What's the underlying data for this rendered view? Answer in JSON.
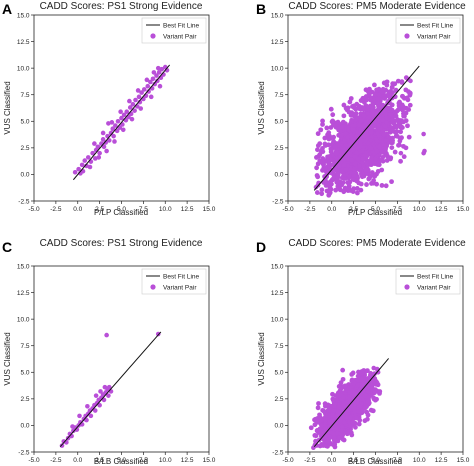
{
  "figure": {
    "panels": [
      {
        "label": "A",
        "title": "CADD Scores: PS1 Strong Evidence",
        "xlabel": "P/LP Classified",
        "ylabel": "VUS Classified"
      },
      {
        "label": "B",
        "title": "CADD Scores: PM5 Moderate Evidence",
        "xlabel": "P/LP Classified",
        "ylabel": "VUS Classified"
      },
      {
        "label": "C",
        "title": "CADD Scores: PS1 Strong Evidence",
        "xlabel": "B/LB Classified",
        "ylabel": "VUS Classified"
      },
      {
        "label": "D",
        "title": "CADD Scores: PM5 Moderate Evidence",
        "xlabel": "B/LB Classified",
        "ylabel": "VUS Classified"
      }
    ],
    "legend": {
      "line": "Best Fit Line",
      "points": "Variant Pair"
    },
    "colors": {
      "points": "#b94fd8",
      "line": "#111111"
    }
  },
  "chart_data": [
    {
      "type": "scatter",
      "title": "CADD Scores: PS1 Strong Evidence",
      "xlabel": "P/LP Classified",
      "ylabel": "VUS Classified",
      "xlim": [
        -5,
        15
      ],
      "ylim": [
        -2.5,
        15
      ],
      "xticks": [
        -5.0,
        -2.5,
        0.0,
        2.5,
        5.0,
        7.5,
        10.0,
        12.5,
        15.0
      ],
      "yticks": [
        -2.5,
        0.0,
        2.5,
        5.0,
        7.5,
        10.0,
        12.5,
        15.0
      ],
      "legend_position": "top-right",
      "fit_line": {
        "x": [
          -0.5,
          10.5
        ],
        "y": [
          -0.5,
          10.3
        ]
      },
      "series": [
        {
          "name": "Variant Pair",
          "points": [
            [
              -0.3,
              0.2
            ],
            [
              0.1,
              0.5
            ],
            [
              0.3,
              0.1
            ],
            [
              0.5,
              0.9
            ],
            [
              0.8,
              1.3
            ],
            [
              1.0,
              0.8
            ],
            [
              1.2,
              1.6
            ],
            [
              1.5,
              1.2
            ],
            [
              1.7,
              2.0
            ],
            [
              2.0,
              1.5
            ],
            [
              2.1,
              2.3
            ],
            [
              2.3,
              2.6
            ],
            [
              2.5,
              2.0
            ],
            [
              2.7,
              2.9
            ],
            [
              2.9,
              3.3
            ],
            [
              3.0,
              2.6
            ],
            [
              3.2,
              3.0
            ],
            [
              3.4,
              3.6
            ],
            [
              3.5,
              4.8
            ],
            [
              3.6,
              3.2
            ],
            [
              3.8,
              3.9
            ],
            [
              4.0,
              4.3
            ],
            [
              4.1,
              3.6
            ],
            [
              4.3,
              4.6
            ],
            [
              4.5,
              4.1
            ],
            [
              4.6,
              5.0
            ],
            [
              4.8,
              4.4
            ],
            [
              5.0,
              5.3
            ],
            [
              5.1,
              4.7
            ],
            [
              5.3,
              5.6
            ],
            [
              5.5,
              5.1
            ],
            [
              5.6,
              5.9
            ],
            [
              5.8,
              5.4
            ],
            [
              6.0,
              6.3
            ],
            [
              6.1,
              5.7
            ],
            [
              6.3,
              6.6
            ],
            [
              6.5,
              6.0
            ],
            [
              6.6,
              7.0
            ],
            [
              6.8,
              6.4
            ],
            [
              7.0,
              7.3
            ],
            [
              7.1,
              6.8
            ],
            [
              7.3,
              7.7
            ],
            [
              7.5,
              7.1
            ],
            [
              7.6,
              8.0
            ],
            [
              7.8,
              7.4
            ],
            [
              8.0,
              8.3
            ],
            [
              8.1,
              7.8
            ],
            [
              8.3,
              8.7
            ],
            [
              8.5,
              8.1
            ],
            [
              8.6,
              9.0
            ],
            [
              8.8,
              8.5
            ],
            [
              9.0,
              9.3
            ],
            [
              9.1,
              8.8
            ],
            [
              9.3,
              9.6
            ],
            [
              9.5,
              9.1
            ],
            [
              9.6,
              9.9
            ],
            [
              9.8,
              9.4
            ],
            [
              10.0,
              10.1
            ],
            [
              10.2,
              9.8
            ],
            [
              9.2,
              10.0
            ],
            [
              8.7,
              9.6
            ],
            [
              7.9,
              8.9
            ],
            [
              6.9,
              7.9
            ],
            [
              5.9,
              6.9
            ],
            [
              4.9,
              5.9
            ],
            [
              3.9,
              4.9
            ],
            [
              2.9,
              3.9
            ],
            [
              1.9,
              2.9
            ],
            [
              7.2,
              6.2
            ],
            [
              8.4,
              7.3
            ],
            [
              5.2,
              4.2
            ],
            [
              4.2,
              3.1
            ],
            [
              3.3,
              2.2
            ],
            [
              6.2,
              5.2
            ],
            [
              9.4,
              8.3
            ],
            [
              2.4,
              1.6
            ],
            [
              1.4,
              0.7
            ],
            [
              0.6,
              0.3
            ]
          ]
        }
      ]
    },
    {
      "type": "scatter",
      "title": "CADD Scores: PM5 Moderate Evidence",
      "xlabel": "P/LP Classified",
      "ylabel": "VUS Classified",
      "xlim": [
        -5,
        15
      ],
      "ylim": [
        -2.5,
        15
      ],
      "xticks": [
        -5.0,
        -2.5,
        0.0,
        2.5,
        5.0,
        7.5,
        10.0,
        12.5,
        15.0
      ],
      "yticks": [
        -2.5,
        0.0,
        2.5,
        5.0,
        7.5,
        10.0,
        12.5,
        15.0
      ],
      "legend_position": "top-right",
      "fit_line": {
        "x": [
          -2.0,
          10.0
        ],
        "y": [
          -1.5,
          10.2
        ]
      },
      "cloud": {
        "center": [
          3.5,
          3.2
        ],
        "spread": [
          2.4,
          2.3
        ],
        "corr": 0.55,
        "count": 1500,
        "x_range": [
          -2.0,
          9.0
        ],
        "y_range": [
          -2.0,
          9.5
        ]
      },
      "series": [
        {
          "name": "Variant Pair",
          "points": [
            [
              10.5,
              3.8
            ],
            [
              10.6,
              2.2
            ],
            [
              10.5,
              2.0
            ],
            [
              8.6,
              7.2
            ],
            [
              8.8,
              6.1
            ],
            [
              9.0,
              8.8
            ],
            [
              -1.8,
              -1.2
            ],
            [
              -1.5,
              -0.8
            ],
            [
              8.2,
              5.5
            ],
            [
              7.9,
              2.0
            ]
          ]
        }
      ]
    },
    {
      "type": "scatter",
      "title": "CADD Scores: PS1 Strong Evidence",
      "xlabel": "B/LB Classified",
      "ylabel": "VUS Classified",
      "xlim": [
        -5,
        15
      ],
      "ylim": [
        -2.5,
        15
      ],
      "xticks": [
        -5.0,
        -2.5,
        0.0,
        2.5,
        5.0,
        7.5,
        10.0,
        12.5,
        15.0
      ],
      "yticks": [
        -2.5,
        0.0,
        2.5,
        5.0,
        7.5,
        10.0,
        12.5,
        15.0
      ],
      "legend_position": "top-right",
      "fit_line": {
        "x": [
          -2.0,
          9.5
        ],
        "y": [
          -2.0,
          8.8
        ]
      },
      "series": [
        {
          "name": "Variant Pair",
          "points": [
            [
              -1.8,
              -1.9
            ],
            [
              -1.6,
              -1.5
            ],
            [
              -1.3,
              -1.6
            ],
            [
              -1.1,
              -1.2
            ],
            [
              -0.9,
              -0.8
            ],
            [
              -0.7,
              -1.0
            ],
            [
              -0.5,
              -0.5
            ],
            [
              -0.3,
              -0.2
            ],
            [
              -0.1,
              -0.4
            ],
            [
              0.1,
              0.0
            ],
            [
              0.3,
              0.3
            ],
            [
              0.5,
              0.1
            ],
            [
              0.7,
              0.6
            ],
            [
              0.9,
              0.9
            ],
            [
              1.0,
              0.5
            ],
            [
              1.2,
              1.1
            ],
            [
              1.4,
              1.4
            ],
            [
              1.5,
              0.9
            ],
            [
              1.7,
              1.6
            ],
            [
              1.9,
              1.9
            ],
            [
              2.0,
              1.4
            ],
            [
              2.2,
              2.1
            ],
            [
              2.4,
              2.4
            ],
            [
              2.5,
              1.9
            ],
            [
              2.7,
              2.6
            ],
            [
              2.9,
              2.9
            ],
            [
              3.0,
              2.4
            ],
            [
              3.2,
              3.1
            ],
            [
              3.4,
              3.4
            ],
            [
              3.5,
              2.8
            ],
            [
              3.6,
              3.6
            ],
            [
              3.8,
              3.2
            ],
            [
              3.3,
              8.5
            ],
            [
              9.2,
              8.6
            ],
            [
              1.1,
              1.8
            ],
            [
              2.1,
              2.8
            ],
            [
              0.2,
              0.9
            ],
            [
              -0.6,
              -0.1
            ],
            [
              3.1,
              3.6
            ],
            [
              2.6,
              3.2
            ]
          ]
        }
      ]
    },
    {
      "type": "scatter",
      "title": "CADD Scores: PM5 Moderate Evidence",
      "xlabel": "B/LB Classified",
      "ylabel": "VUS Classified",
      "xlim": [
        -5,
        15
      ],
      "ylim": [
        -2.5,
        15
      ],
      "xticks": [
        -5.0,
        -2.5,
        0.0,
        2.5,
        5.0,
        7.5,
        10.0,
        12.5,
        15.0
      ],
      "yticks": [
        -2.5,
        0.0,
        2.5,
        5.0,
        7.5,
        10.0,
        12.5,
        15.0
      ],
      "legend_position": "top-right",
      "fit_line": {
        "x": [
          -2.0,
          6.5
        ],
        "y": [
          -2.0,
          6.3
        ]
      },
      "cloud": {
        "center": [
          1.6,
          1.5
        ],
        "spread": [
          1.5,
          1.5
        ],
        "corr": 0.7,
        "count": 1500,
        "x_range": [
          -2.4,
          5.6
        ],
        "y_range": [
          -2.2,
          5.3
        ]
      },
      "series": [
        {
          "name": "Variant Pair",
          "points": [
            [
              -2.1,
              -2.1
            ],
            [
              -1.9,
              -1.8
            ],
            [
              5.2,
              4.0
            ],
            [
              5.5,
              3.2
            ],
            [
              5.3,
              5.0
            ],
            [
              4.8,
              5.4
            ],
            [
              -1.2,
              -1.0
            ],
            [
              0.0,
              0.0
            ],
            [
              3.0,
              2.5
            ],
            [
              2.0,
              3.5
            ]
          ]
        }
      ]
    }
  ]
}
